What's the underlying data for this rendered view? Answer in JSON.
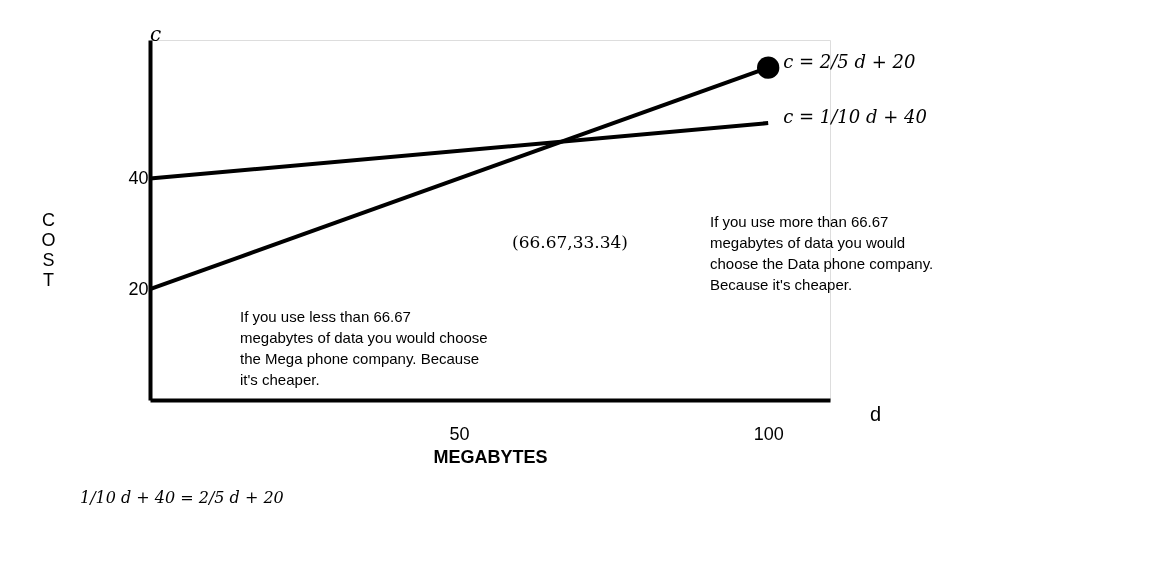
{
  "chart_data": {
    "type": "line",
    "xlabel": "MEGABYTES",
    "ylabel": "COST",
    "x": [
      0,
      100
    ],
    "xlim": [
      0,
      110
    ],
    "ylim": [
      0,
      65
    ],
    "xticks": [
      50,
      100
    ],
    "yticks": [
      20,
      40
    ],
    "grid": false,
    "line_style": "solid",
    "series": [
      {
        "name": "c = 2/5 d + 20",
        "color": "#000000",
        "values": [
          20,
          60
        ]
      },
      {
        "name": "c = 1/10 d + 40",
        "color": "#000000",
        "values": [
          40,
          50
        ]
      },
      {
        "type": "scatter",
        "color": "#000000",
        "x": [
          100
        ],
        "values": [
          60
        ],
        "marker": "circle"
      }
    ],
    "annotations": [
      "c",
      "d",
      "(66.67,33.34)",
      "If you use more than 66.67 megabytes of data you would choose the Data phone company. Because it's cheaper.",
      "If you use less than 66.67 megabytes of data you would choose the Mega phone company. Because it's cheaper.",
      "1/10 d + 40 = 2/5 d + 20"
    ]
  }
}
